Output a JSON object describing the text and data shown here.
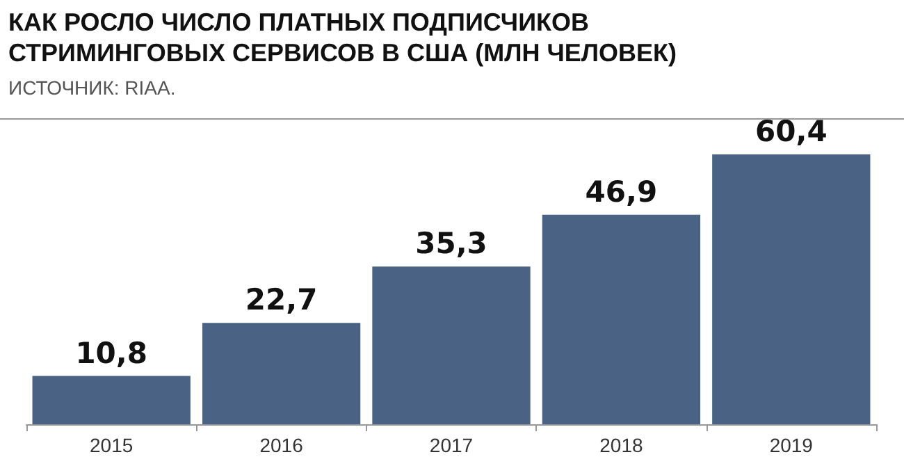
{
  "chart_data": {
    "type": "bar",
    "title": "КАК РОСЛО ЧИСЛО ПЛАТНЫХ ПОДПИСЧИКОВ СТРИМИНГОВЫХ СЕРВИСОВ В США (МЛН ЧЕЛОВЕК)",
    "annotations": [
      "ИСТОЧНИК: RIAA."
    ],
    "categories": [
      "2015",
      "2016",
      "2017",
      "2018",
      "2019"
    ],
    "series": [
      {
        "color": "#4a6283",
        "values": [
          10.8,
          22.7,
          35.3,
          46.9,
          60.4
        ],
        "value_labels": [
          "10,8",
          "22,7",
          "35,3",
          "46,9",
          "60,4"
        ]
      }
    ]
  }
}
